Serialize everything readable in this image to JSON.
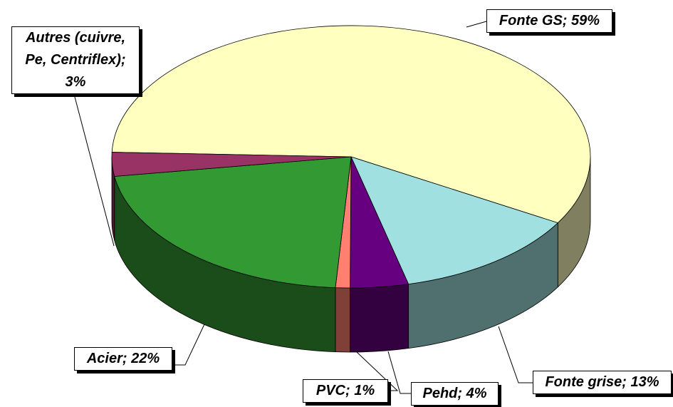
{
  "chart_data": {
    "type": "pie",
    "value_labels": [
      "Fonte GS; 59%",
      "Fonte grise; 13%",
      "Pehd; 4%",
      "PVC; 1%",
      "Acier; 22%",
      "Autres (cuivre,\nPe, Centriflex);\n3%"
    ],
    "values": [
      59,
      13,
      4,
      1,
      22,
      3
    ],
    "colors": [
      "#ffffc0",
      "#a0e0e0",
      "#660080",
      "#ff8070",
      "#339933",
      "#993366"
    ],
    "three_d": true
  }
}
